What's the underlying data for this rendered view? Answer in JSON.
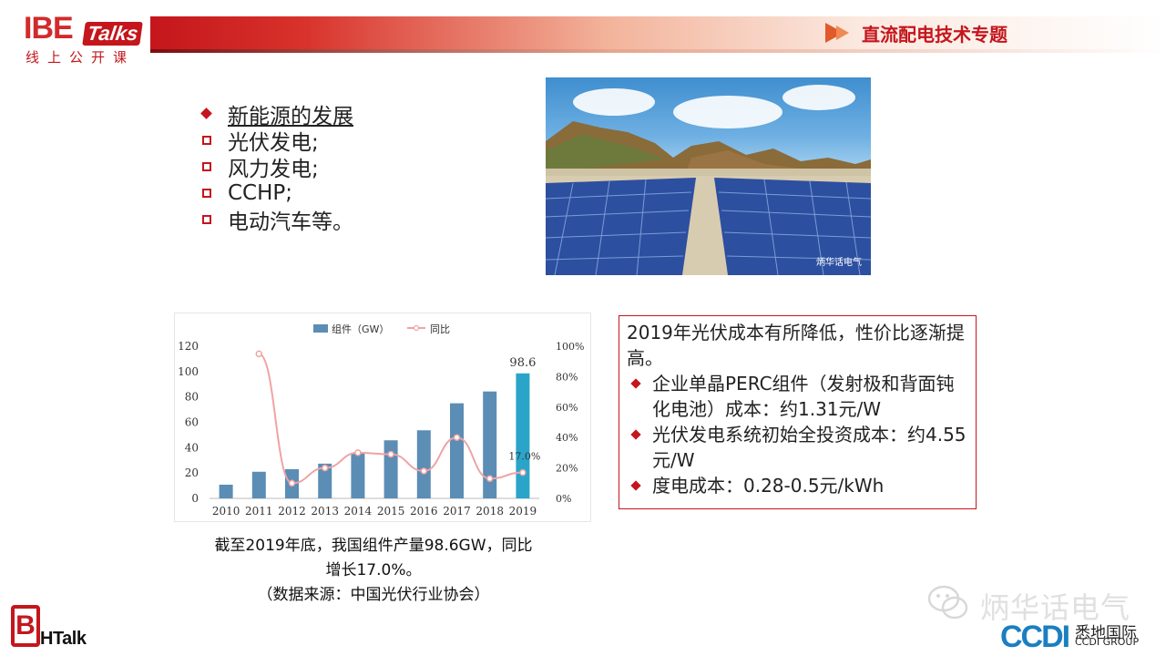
{
  "header": {
    "logo_main": "IBE",
    "logo_badge": "Talks",
    "logo_sub": "线上公开课",
    "title": "直流配电技术专题"
  },
  "bullets": [
    {
      "label": "新能源的发展",
      "style": "diamond",
      "underline": true
    },
    {
      "label": "光伏发电;",
      "style": "square"
    },
    {
      "label": "风力发电;",
      "style": "square"
    },
    {
      "label": "CCHP;",
      "style": "square"
    },
    {
      "label": "电动汽车等。",
      "style": "square"
    }
  ],
  "photo": {
    "watermark": "炳华话电气"
  },
  "chart_data": {
    "type": "bar",
    "legend": [
      "组件（GW）",
      "同比"
    ],
    "categories": [
      "2010",
      "2011",
      "2012",
      "2013",
      "2014",
      "2015",
      "2016",
      "2017",
      "2018",
      "2019"
    ],
    "series": [
      {
        "name": "组件（GW）",
        "type": "bar",
        "axis": "left",
        "values": [
          10.8,
          21,
          23,
          27.4,
          35.6,
          45.8,
          53.7,
          75,
          84.3,
          98.6
        ]
      },
      {
        "name": "同比",
        "type": "line",
        "axis": "right",
        "values": [
          null,
          95,
          10,
          20,
          30,
          29,
          18,
          40,
          13,
          17
        ]
      }
    ],
    "y_left_ticks": [
      "0",
      "20",
      "40",
      "60",
      "80",
      "100",
      "120"
    ],
    "y_left_range": [
      0,
      120
    ],
    "y_right_ticks": [
      "0%",
      "20%",
      "40%",
      "60%",
      "80%",
      "100%"
    ],
    "y_right_range": [
      0,
      100
    ],
    "annotations": {
      "last_bar": "98.6",
      "last_rate": "17.0%"
    },
    "colors": {
      "bar": "#5b8db5",
      "bar_highlight": "#2aa5c9",
      "line": "#f0a3a3"
    }
  },
  "caption": {
    "line1": "截至2019年底，我国组件产量98.6GW，同比",
    "line2": "增长17.0%。",
    "line3": "（数据来源：中国光伏行业协会）"
  },
  "info": {
    "lead": "2019年光伏成本有所降低，性价比逐渐提高。",
    "items": [
      "企业单晶PERC组件（发射极和背面钝化电池）成本：约1.31元/W",
      "光伏发电系统初始全投资成本：约4.55元/W",
      "度电成本：0.28-0.5元/kWh"
    ]
  },
  "footer": {
    "bh_letter": "B",
    "bh_text": "HTalk",
    "wechat_name": "炳华话电气",
    "ccdi_logo": "CCDI",
    "ccdi_cn": "悉地国际",
    "ccdi_en": "CCDI GROUP"
  },
  "colors": {
    "accent": "#c4161c",
    "brand_blue": "#1a7fc0"
  }
}
